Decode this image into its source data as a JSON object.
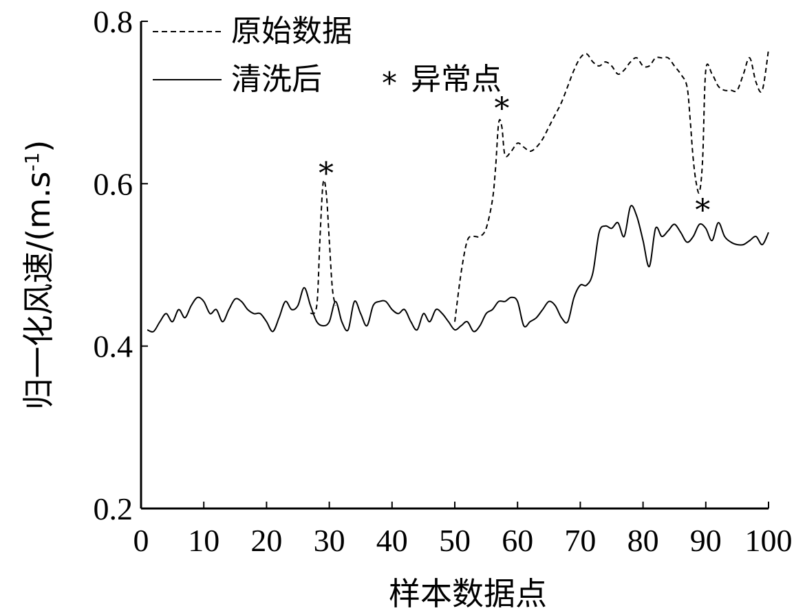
{
  "chart_data": {
    "type": "line",
    "title": "",
    "xlabel": "样本数据点",
    "ylabel": "归一化风速/(m.s",
    "ylabel_sup": "-1",
    "ylabel_close": ")",
    "xlim": [
      0,
      100
    ],
    "ylim": [
      0.2,
      0.8
    ],
    "xticks": [
      0,
      10,
      20,
      30,
      40,
      50,
      60,
      70,
      80,
      90,
      100
    ],
    "yticks": [
      0.2,
      0.4,
      0.6,
      0.8
    ],
    "xtick_labels": [
      "0",
      "10",
      "20",
      "30",
      "40",
      "50",
      "60",
      "70",
      "80",
      "90",
      "100"
    ],
    "ytick_labels": [
      "0.2",
      "0.4",
      "0.6",
      "0.8"
    ],
    "grid": false,
    "legend_position": "top-left",
    "legend": {
      "raw_label": "原始数据",
      "clean_label": "清洗后",
      "outlier_marker": "*",
      "outlier_label": "异常点"
    },
    "series": [
      {
        "name": "原始数据",
        "style": "dashed",
        "color": "#000000",
        "x": [
          27,
          28,
          28.5,
          29,
          29.5,
          30,
          30.5,
          31,
          50,
          51,
          52,
          53,
          54,
          55,
          56,
          56.5,
          57,
          57.5,
          58,
          59,
          60,
          61,
          62,
          63,
          64,
          65,
          66,
          67,
          68,
          69,
          70,
          71,
          72,
          73,
          74,
          75,
          76,
          77,
          78,
          79,
          80,
          81,
          82,
          83,
          84,
          85,
          86,
          87,
          87.5,
          88,
          88.5,
          89,
          89.5,
          90,
          91,
          92,
          93,
          94,
          95,
          96,
          97,
          98,
          99,
          100
        ],
        "y": [
          0.44,
          0.45,
          0.53,
          0.6,
          0.59,
          0.53,
          0.47,
          0.45,
          0.43,
          0.49,
          0.53,
          0.535,
          0.535,
          0.545,
          0.58,
          0.62,
          0.675,
          0.67,
          0.635,
          0.64,
          0.65,
          0.645,
          0.64,
          0.645,
          0.655,
          0.67,
          0.685,
          0.7,
          0.72,
          0.74,
          0.755,
          0.76,
          0.75,
          0.745,
          0.75,
          0.745,
          0.735,
          0.74,
          0.75,
          0.755,
          0.745,
          0.745,
          0.755,
          0.755,
          0.755,
          0.745,
          0.735,
          0.72,
          0.68,
          0.63,
          0.6,
          0.59,
          0.63,
          0.74,
          0.735,
          0.72,
          0.715,
          0.715,
          0.715,
          0.735,
          0.755,
          0.725,
          0.715,
          0.765
        ]
      },
      {
        "name": "清洗后",
        "style": "solid",
        "color": "#000000",
        "x": [
          1,
          2,
          3,
          4,
          5,
          6,
          7,
          8,
          9,
          10,
          11,
          12,
          13,
          14,
          15,
          16,
          17,
          18,
          19,
          20,
          21,
          22,
          23,
          24,
          25,
          26,
          27,
          28,
          29,
          30,
          31,
          32,
          33,
          34,
          35,
          36,
          37,
          38,
          39,
          40,
          41,
          42,
          43,
          44,
          45,
          46,
          47,
          48,
          49,
          50,
          51,
          52,
          53,
          54,
          55,
          56,
          57,
          58,
          59,
          60,
          61,
          62,
          63,
          64,
          65,
          66,
          67,
          68,
          69,
          70,
          71,
          72,
          73,
          74,
          75,
          76,
          77,
          78,
          79,
          80,
          81,
          82,
          83,
          84,
          85,
          86,
          87,
          88,
          89,
          90,
          91,
          92,
          93,
          94,
          95,
          96,
          97,
          98,
          99,
          100
        ],
        "y": [
          0.42,
          0.418,
          0.43,
          0.44,
          0.43,
          0.445,
          0.435,
          0.45,
          0.46,
          0.455,
          0.44,
          0.445,
          0.43,
          0.445,
          0.458,
          0.455,
          0.445,
          0.44,
          0.44,
          0.43,
          0.418,
          0.435,
          0.455,
          0.445,
          0.45,
          0.472,
          0.45,
          0.43,
          0.425,
          0.43,
          0.455,
          0.43,
          0.42,
          0.455,
          0.44,
          0.425,
          0.45,
          0.455,
          0.455,
          0.445,
          0.44,
          0.445,
          0.43,
          0.42,
          0.44,
          0.43,
          0.445,
          0.44,
          0.43,
          0.42,
          0.425,
          0.43,
          0.418,
          0.425,
          0.44,
          0.445,
          0.455,
          0.455,
          0.46,
          0.455,
          0.425,
          0.43,
          0.435,
          0.445,
          0.455,
          0.45,
          0.435,
          0.43,
          0.46,
          0.475,
          0.475,
          0.49,
          0.54,
          0.548,
          0.545,
          0.552,
          0.535,
          0.572,
          0.56,
          0.53,
          0.498,
          0.545,
          0.535,
          0.542,
          0.55,
          0.54,
          0.528,
          0.535,
          0.55,
          0.545,
          0.53,
          0.552,
          0.535,
          0.528,
          0.525,
          0.525,
          0.53,
          0.535,
          0.525,
          0.54
        ]
      }
    ],
    "outliers": {
      "marker": "*",
      "points": [
        {
          "x": 29.5,
          "y": 0.62
        },
        {
          "x": 57.5,
          "y": 0.7
        },
        {
          "x": 89.5,
          "y": 0.575
        }
      ]
    }
  }
}
